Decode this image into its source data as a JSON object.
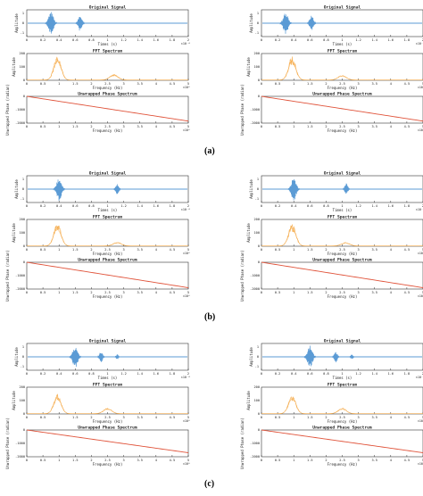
{
  "chart_data": [
    {
      "panel": "a",
      "sample": "left",
      "signal": {
        "title": "Original Signal",
        "ylabel": "Amplitude",
        "xlabel": "Times (s)",
        "xlim": [
          0,
          2
        ],
        "xticks": [
          "0",
          "0.2",
          "0.4",
          "0.6",
          "0.8",
          "1",
          "1.2",
          "1.4",
          "1.6",
          "1.8",
          "2"
        ],
        "x_exponent": "×10⁻⁴",
        "bursts": [
          {
            "t": 0.3,
            "amp": 1.0
          },
          {
            "t": 0.66,
            "amp": 0.7
          }
        ]
      },
      "fft": {
        "title": "FFT Spectrum",
        "ylabel": "Amplitude",
        "xlabel": "Frequency (Hz)",
        "xlim": [
          0,
          5
        ],
        "ylim": [
          0,
          200
        ],
        "yticks": [
          "0",
          "100",
          "200"
        ],
        "xticks": [
          "0",
          "0.5",
          "1",
          "1.5",
          "2",
          "2.5",
          "3",
          "3.5",
          "4",
          "4.5",
          "5"
        ],
        "x_exponent": "×10⁶",
        "peaks": [
          {
            "f": 0.95,
            "a": 185
          },
          {
            "f": 2.7,
            "a": 45
          }
        ]
      },
      "phase": {
        "title": "Unwrapped Phase Spectrum",
        "ylabel": "Unwrapped Phase (radian)",
        "xlabel": "Frequency (Hz)",
        "xlim": [
          0,
          5
        ],
        "ylim": [
          -2000,
          0
        ],
        "yticks": [
          "-2000",
          "-1000",
          "0"
        ],
        "x_exponent": "×10⁶",
        "end": -1850
      }
    },
    {
      "panel": "a",
      "sample": "right",
      "signal": {
        "title": "Original Signal",
        "ylabel": "Amplitude",
        "xlabel": "Times (s)",
        "xlim": [
          0,
          2
        ],
        "xticks": [
          "0",
          "0.2",
          "0.4",
          "0.6",
          "0.8",
          "1",
          "1.2",
          "1.4",
          "1.6",
          "1.8",
          "2"
        ],
        "x_exponent": "×10⁻⁴",
        "bursts": [
          {
            "t": 0.3,
            "amp": 1.0
          },
          {
            "t": 0.62,
            "amp": 0.7
          }
        ]
      },
      "fft": {
        "title": "FFT Spectrum",
        "ylabel": "Amplitude",
        "xlabel": "Frequency (Hz)",
        "xlim": [
          0,
          5
        ],
        "ylim": [
          0,
          200
        ],
        "yticks": [
          "0",
          "100",
          "200"
        ],
        "xticks": [
          "0",
          "0.5",
          "1",
          "1.5",
          "2",
          "2.5",
          "3",
          "3.5",
          "4",
          "4.5",
          "5"
        ],
        "x_exponent": "×10⁶",
        "peaks": [
          {
            "f": 0.95,
            "a": 180
          },
          {
            "f": 2.5,
            "a": 40
          }
        ]
      },
      "phase": {
        "title": "Unwrapped Phase Spectrum",
        "ylabel": "Unwrapped Phase (radian)",
        "xlabel": "Frequency (Hz)",
        "xlim": [
          0,
          5
        ],
        "ylim": [
          -2000,
          0
        ],
        "yticks": [
          "-2000",
          "-1000",
          "0"
        ],
        "x_exponent": "×10⁶",
        "end": -1850
      }
    },
    {
      "panel": "b",
      "sample": "left",
      "signal": {
        "title": "Original Signal",
        "ylabel": "Amplitude",
        "xlabel": "Times (s)",
        "xlim": [
          0,
          2
        ],
        "xticks": [
          "0",
          "0.2",
          "0.4",
          "0.6",
          "0.8",
          "1",
          "1.2",
          "1.4",
          "1.6",
          "1.8",
          "2"
        ],
        "x_exponent": "×10⁻⁴",
        "bursts": [
          {
            "t": 0.4,
            "amp": 1.0
          },
          {
            "t": 1.12,
            "amp": 0.5
          }
        ]
      },
      "fft": {
        "title": "FFT Spectrum",
        "ylabel": "Amplitude",
        "xlabel": "Frequency (Hz)",
        "xlim": [
          0,
          5
        ],
        "ylim": [
          0,
          200
        ],
        "yticks": [
          "0",
          "100",
          "200"
        ],
        "xticks": [
          "0",
          "0.5",
          "1",
          "1.5",
          "2",
          "2.5",
          "3",
          "3.5",
          "4",
          "4.5",
          "5"
        ],
        "x_exponent": "×10⁶",
        "peaks": [
          {
            "f": 0.95,
            "a": 175
          },
          {
            "f": 2.8,
            "a": 30
          }
        ]
      },
      "phase": {
        "title": "Unwrapped Phase Spectrum",
        "ylabel": "Unwrapped Phase (radian)",
        "xlabel": "Frequency (Hz)",
        "xlim": [
          0,
          5
        ],
        "ylim": [
          -2000,
          0
        ],
        "yticks": [
          "-2000",
          "-1000",
          "0"
        ],
        "x_exponent": "×10⁶",
        "end": -1900
      }
    },
    {
      "panel": "b",
      "sample": "right",
      "signal": {
        "title": "Original Signal",
        "ylabel": "Amplitude",
        "xlabel": "Times (s)",
        "xlim": [
          0,
          2
        ],
        "xticks": [
          "0",
          "0.2",
          "0.4",
          "0.6",
          "0.8",
          "1",
          "1.2",
          "1.4",
          "1.6",
          "1.8",
          "2"
        ],
        "x_exponent": "×10⁻⁴",
        "bursts": [
          {
            "t": 0.4,
            "amp": 1.0
          },
          {
            "t": 1.05,
            "amp": 0.5
          }
        ]
      },
      "fft": {
        "title": "FFT Spectrum",
        "ylabel": "Amplitude",
        "xlabel": "Frequency (Hz)",
        "xlim": [
          0,
          5
        ],
        "ylim": [
          0,
          200
        ],
        "yticks": [
          "0",
          "100",
          "200"
        ],
        "xticks": [
          "0",
          "0.5",
          "1",
          "1.5",
          "2",
          "2.5",
          "3",
          "3.5",
          "4",
          "4.5",
          "5"
        ],
        "x_exponent": "×10⁶",
        "peaks": [
          {
            "f": 0.95,
            "a": 170
          },
          {
            "f": 2.6,
            "a": 28
          }
        ]
      },
      "phase": {
        "title": "Unwrapped Phase Spectrum",
        "ylabel": "Unwrapped Phase (radian)",
        "xlabel": "Frequency (Hz)",
        "xlim": [
          0,
          5
        ],
        "ylim": [
          -2000,
          0
        ],
        "yticks": [
          "-2000",
          "-1000",
          "0"
        ],
        "x_exponent": "×10⁶",
        "end": -1900
      }
    },
    {
      "panel": "c",
      "sample": "left",
      "signal": {
        "title": "Original Signal",
        "ylabel": "Amplitude",
        "xlabel": "Times (s)",
        "xlim": [
          0,
          2
        ],
        "xticks": [
          "0",
          "0.2",
          "0.4",
          "0.6",
          "0.8",
          "1",
          "1.2",
          "1.4",
          "1.6",
          "1.8",
          "2"
        ],
        "x_exponent": "×10⁻⁴",
        "bursts": [
          {
            "t": 0.6,
            "amp": 1.0
          },
          {
            "t": 0.92,
            "amp": 0.5
          },
          {
            "t": 1.12,
            "amp": 0.25
          }
        ]
      },
      "fft": {
        "title": "FFT Spectrum",
        "ylabel": "Amplitude",
        "xlabel": "Frequency (Hz)",
        "xlim": [
          0,
          5
        ],
        "ylim": [
          0,
          200
        ],
        "yticks": [
          "0",
          "100",
          "200"
        ],
        "xticks": [
          "0",
          "0.5",
          "1",
          "1.5",
          "2",
          "2.5",
          "3",
          "3.5",
          "4",
          "4.5",
          "5"
        ],
        "x_exponent": "×10⁶",
        "peaks": [
          {
            "f": 0.95,
            "a": 150
          },
          {
            "f": 2.5,
            "a": 45
          }
        ]
      },
      "phase": {
        "title": "Unwrapped Phase Spectrum",
        "ylabel": "Unwrapped Phase (radian)",
        "xlabel": "Frequency (Hz)",
        "xlim": [
          0,
          5
        ],
        "ylim": [
          -2000,
          0
        ],
        "yticks": [
          "-2000",
          "-1000",
          "0"
        ],
        "x_exponent": "×10⁶",
        "end": -1700
      }
    },
    {
      "panel": "c",
      "sample": "right",
      "signal": {
        "title": "Original Signal",
        "ylabel": "Amplitude",
        "xlabel": "Times (s)",
        "xlim": [
          0,
          2
        ],
        "xticks": [
          "0",
          "0.2",
          "0.4",
          "0.6",
          "0.8",
          "1",
          "1.2",
          "1.4",
          "1.6",
          "1.8",
          "2"
        ],
        "x_exponent": "×10⁻⁴",
        "bursts": [
          {
            "t": 0.6,
            "amp": 1.0
          },
          {
            "t": 0.92,
            "amp": 0.5
          },
          {
            "t": 1.12,
            "amp": 0.25
          }
        ]
      },
      "fft": {
        "title": "FFT Spectrum",
        "ylabel": "Amplitude",
        "xlabel": "Frequency (Hz)",
        "xlim": [
          0,
          5
        ],
        "ylim": [
          0,
          200
        ],
        "yticks": [
          "0",
          "100",
          "200"
        ],
        "xticks": [
          "0",
          "0.5",
          "1",
          "1.5",
          "2",
          "2.5",
          "3",
          "3.5",
          "4",
          "4.5",
          "5"
        ],
        "x_exponent": "×10⁶",
        "peaks": [
          {
            "f": 0.95,
            "a": 150
          },
          {
            "f": 2.5,
            "a": 45
          }
        ]
      },
      "phase": {
        "title": "Unwrapped Phase Spectrum",
        "ylabel": "Unwrapped Phase (radian)",
        "xlabel": "Frequency (Hz)",
        "xlim": [
          0,
          5
        ],
        "ylim": [
          -2000,
          0
        ],
        "yticks": [
          "-2000",
          "-1000",
          "0"
        ],
        "x_exponent": "×10⁶",
        "end": -1700
      }
    }
  ],
  "captions": [
    "(a)",
    "(b)",
    "(c)"
  ],
  "colors": {
    "signal": "#5b9bd5",
    "fft": "#f4a742",
    "phase": "#e0533a",
    "axis": "#333333"
  }
}
